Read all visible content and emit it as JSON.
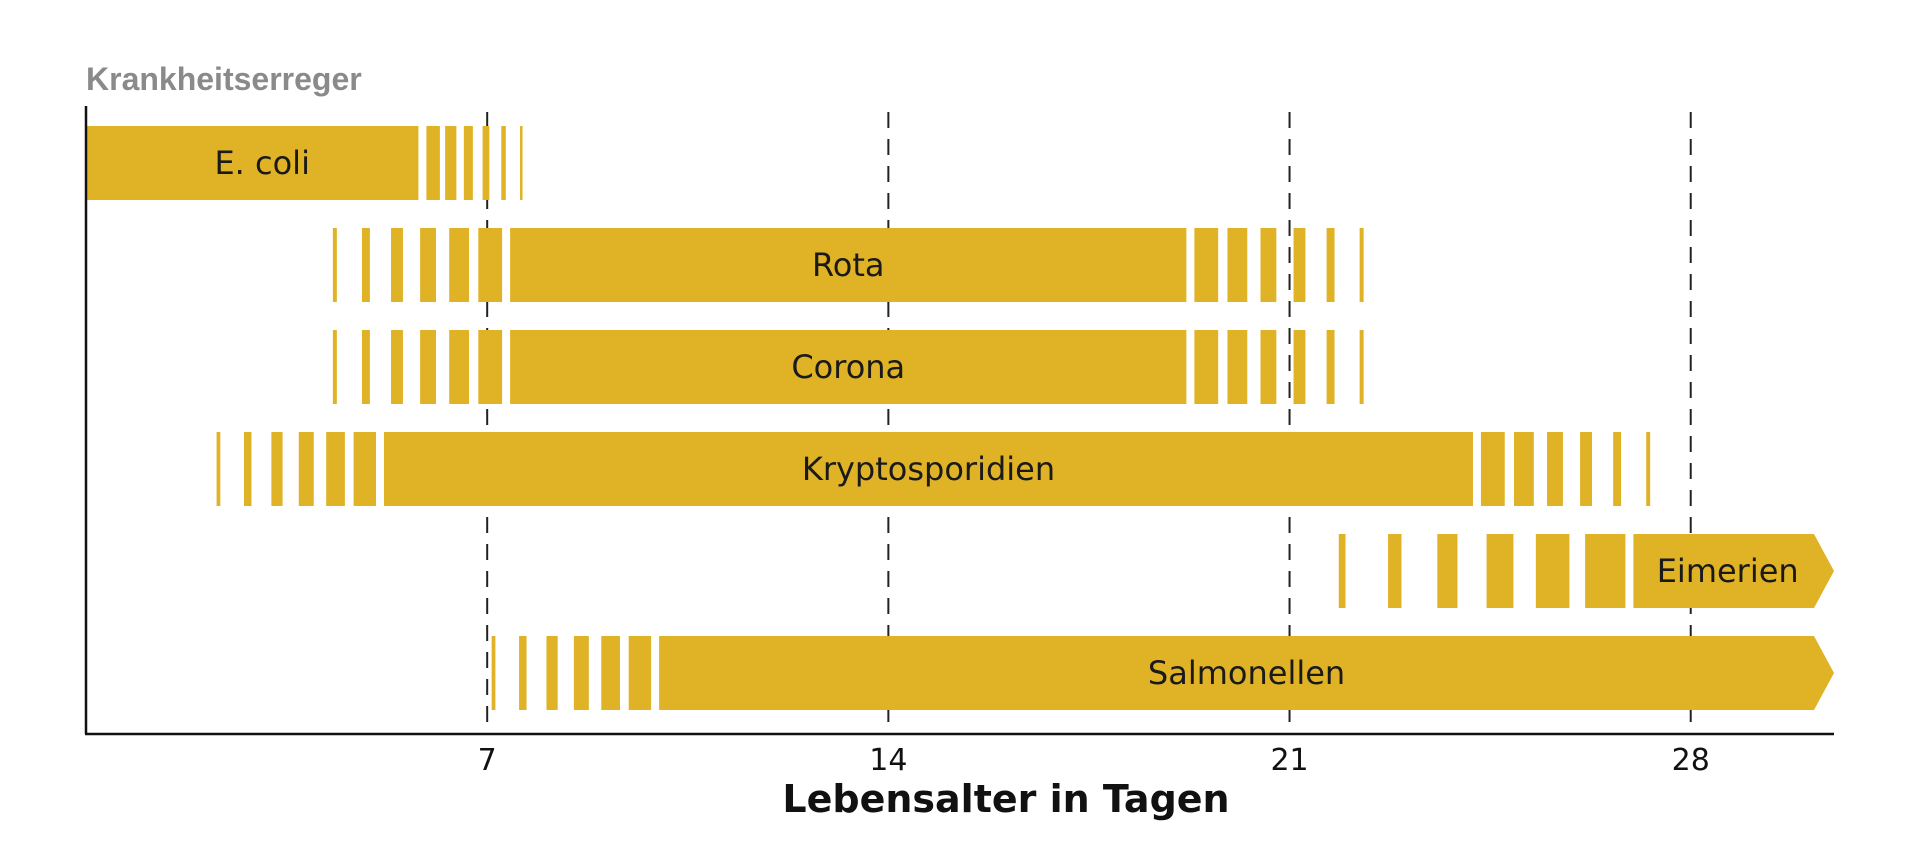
{
  "chart_data": {
    "type": "bar",
    "subtype": "horizontal-range",
    "title": "",
    "ylabel": "Krankheitserreger",
    "xlabel": "Lebensalter in Tagen",
    "xlim": [
      0,
      30.5
    ],
    "xticks": [
      7,
      14,
      21,
      28
    ],
    "xtick_labels": [
      "7",
      "14",
      "21",
      "28"
    ],
    "grid": "vertical dashed lines at ticks",
    "bar_color": "#E0B226",
    "axis_color": "#111111",
    "ylabel_color": "#8A8A8A",
    "series": [
      {
        "name": "E. coli",
        "onset_start": 0,
        "main_start": 0,
        "main_end": 5.8,
        "fade_end": 7.9,
        "open_end": false
      },
      {
        "name": "Rota",
        "onset_start": 3.8,
        "main_start": 7.4,
        "main_end": 19.2,
        "fade_end": 22.8,
        "open_end": false
      },
      {
        "name": "Corona",
        "onset_start": 3.8,
        "main_start": 7.4,
        "main_end": 19.2,
        "fade_end": 22.8,
        "open_end": false
      },
      {
        "name": "Kryptosporidien",
        "onset_start": 1.8,
        "main_start": 5.2,
        "main_end": 24.2,
        "fade_end": 27.8,
        "open_end": false
      },
      {
        "name": "Eimerien",
        "onset_start": 21.0,
        "main_start": 27.0,
        "main_end": 30.5,
        "fade_end": 30.5,
        "open_end": true
      },
      {
        "name": "Salmonellen",
        "onset_start": 6.6,
        "main_start": 10.0,
        "main_end": 30.5,
        "fade_end": 30.5,
        "open_end": true
      }
    ]
  }
}
